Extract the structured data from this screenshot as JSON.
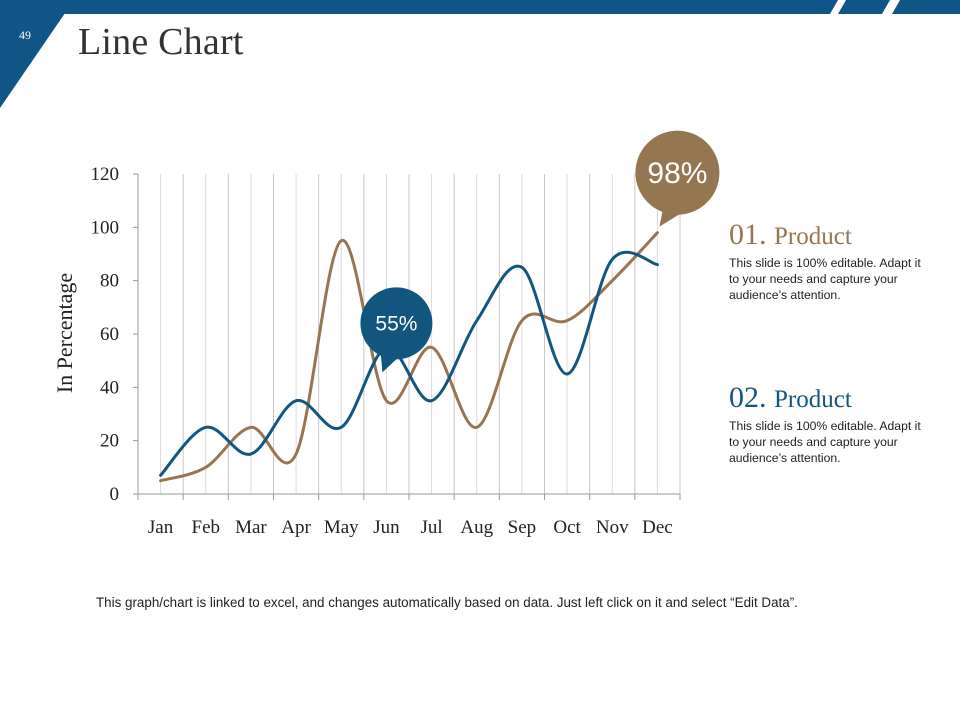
{
  "slide": {
    "page_number": "49",
    "title": "Line Chart",
    "footer_note": "This graph/chart is linked to excel, and changes automatically based on data. Just left click on it and select “Edit Data”."
  },
  "colors": {
    "band": "#0f5585",
    "product1": "#957651",
    "product2": "#12567f",
    "grid": "#c8c8c8",
    "text": "#222222"
  },
  "products": [
    {
      "number": "01.",
      "name": "Product",
      "color": "#957651",
      "description": "This slide is 100% editable. Adapt it to your needs and capture your audience’s attention."
    },
    {
      "number": "02.",
      "name": "Product",
      "color": "#12567f",
      "description": "This slide is 100% editable. Adapt it to your needs and capture your audience’s attention."
    }
  ],
  "callouts": [
    {
      "label": "98%",
      "series": 0,
      "month_index": 11,
      "color": "#957651"
    },
    {
      "label": "55%",
      "series": 1,
      "month_index": 5,
      "color": "#12567f"
    }
  ],
  "chart_data": {
    "type": "line",
    "title": "",
    "xlabel": "",
    "ylabel": "In Percentage",
    "categories": [
      "Jan",
      "Feb",
      "Mar",
      "Apr",
      "May",
      "Jun",
      "Jul",
      "Aug",
      "Sep",
      "Oct",
      "Nov",
      "Dec"
    ],
    "ylim": [
      0,
      120
    ],
    "yticks": [
      0,
      20,
      40,
      60,
      80,
      100,
      120
    ],
    "grid": "vertical",
    "smooth": true,
    "series": [
      {
        "values": [
          5,
          10,
          25,
          15,
          95,
          35,
          55,
          25,
          65,
          65,
          80,
          98
        ],
        "color": "#957651"
      },
      {
        "values": [
          7,
          25,
          15,
          35,
          25,
          55,
          35,
          65,
          85,
          45,
          88,
          86
        ],
        "color": "#12567f"
      }
    ]
  }
}
